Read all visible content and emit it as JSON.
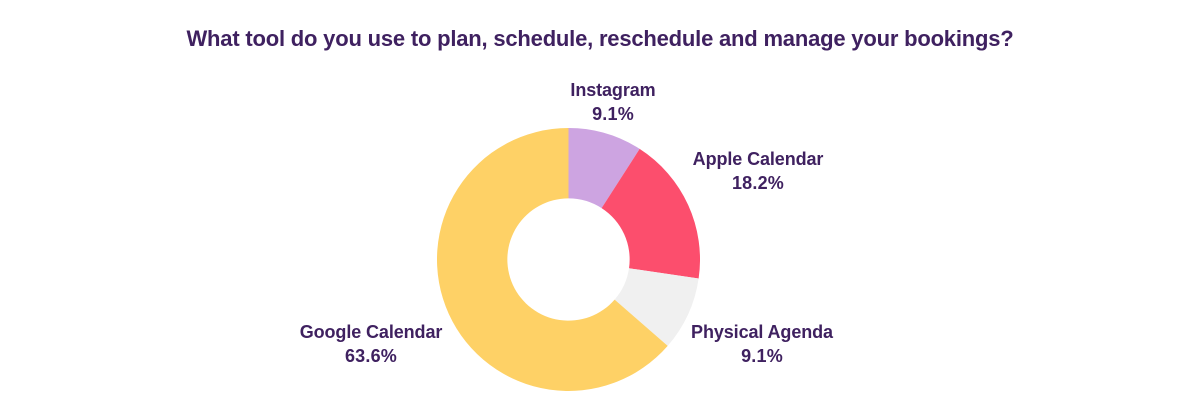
{
  "title": "What tool do you use to plan, schedule, reschedule and manage your bookings?",
  "colors": {
    "background": "#ffffff",
    "title_text": "#3f2160",
    "label_text": "#3f2160",
    "donut_hole": "#ffffff"
  },
  "chart_data": {
    "type": "pie",
    "subtype": "donut",
    "title": "What tool do you use to plan, schedule, reschedule and manage your bookings?",
    "start_angle_deg": 0,
    "direction": "clockwise",
    "inner_radius_ratio": 0.465,
    "legend_position": "labels-around-chart",
    "segments": [
      {
        "label": "Instagram",
        "value": 9.1,
        "pct_label": "9.1%",
        "color": "#cda4e1"
      },
      {
        "label": "Apple Calendar",
        "value": 18.2,
        "pct_label": "18.2%",
        "color": "#fc4e6d"
      },
      {
        "label": "Physical Agenda",
        "value": 9.1,
        "pct_label": "9.1%",
        "color": "#f0f0f0"
      },
      {
        "label": "Google Calendar",
        "value": 63.6,
        "pct_label": "63.6%",
        "color": "#fed166"
      }
    ]
  }
}
